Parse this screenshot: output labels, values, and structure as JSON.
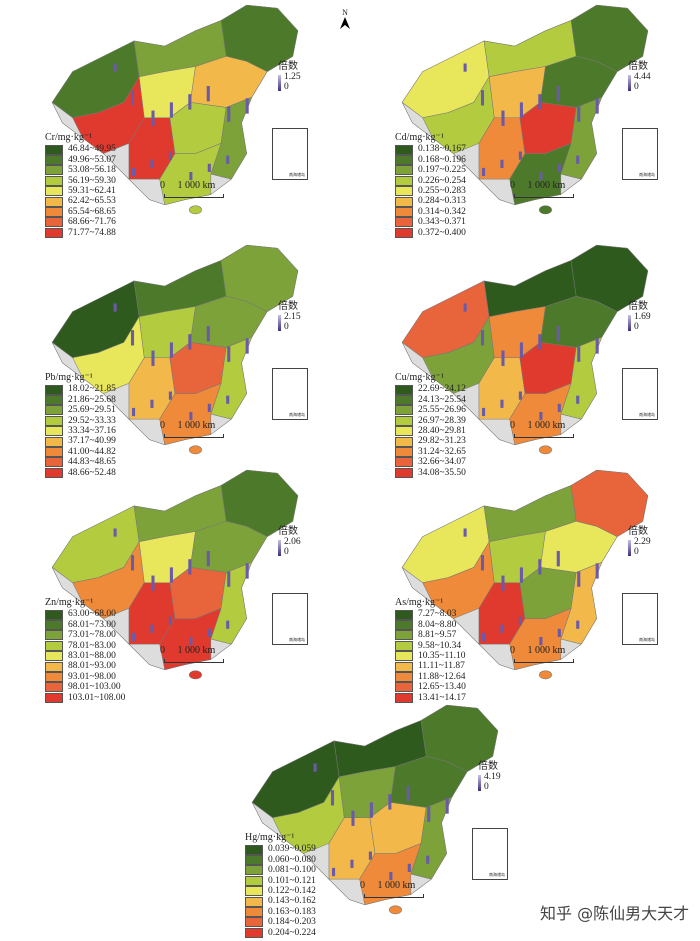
{
  "north_label": "N",
  "watermark": "知乎 @陈仙男大天才",
  "scale_zero": "0",
  "scale_label": "1 000 km",
  "inset_label": "南海诸岛",
  "bar_title": "倍数",
  "maps": [
    {
      "title": "Cr/mg·kg⁻¹",
      "bar_max": "1.25",
      "bar_min": "0",
      "classes": [
        "46.84~49.95",
        "49.96~53.07",
        "53.08~56.18",
        "56.19~59.30",
        "59.31~62.41",
        "62.42~65.53",
        "65.54~68.65",
        "68.66~71.76",
        "71.77~74.88"
      ]
    },
    {
      "title": "Cd/mg·kg⁻¹",
      "bar_max": "4.44",
      "bar_min": "0",
      "classes": [
        "0.138~0.167",
        "0.168~0.196",
        "0.197~0.225",
        "0.226~0.254",
        "0.255~0.283",
        "0.284~0.313",
        "0.314~0.342",
        "0.343~0.371",
        "0.372~0.400"
      ]
    },
    {
      "title": "Pb/mg·kg⁻¹",
      "bar_max": "2.15",
      "bar_min": "0",
      "classes": [
        "18.02~21.85",
        "21.86~25.68",
        "25.69~29.51",
        "29.52~33.33",
        "33.34~37.16",
        "37.17~40.99",
        "41.00~44.82",
        "44.83~48.65",
        "48.66~52.48"
      ]
    },
    {
      "title": "Cu/mg·kg⁻¹",
      "bar_max": "1.69",
      "bar_min": "0",
      "classes": [
        "22.69~24.12",
        "24.13~25.54",
        "25.55~26.96",
        "26.97~28.39",
        "28.40~29.81",
        "29.82~31.23",
        "31.24~32.65",
        "32.66~34.07",
        "34.08~35.50"
      ]
    },
    {
      "title": "Zn/mg·kg⁻¹",
      "bar_max": "2.06",
      "bar_min": "0",
      "classes": [
        "63.00~68.00",
        "68.01~73.00",
        "73.01~78.00",
        "78.01~83.00",
        "83.01~88.00",
        "88.01~93.00",
        "93.01~98.00",
        "98.01~103.00",
        "103.01~108.00"
      ]
    },
    {
      "title": "As/mg·kg⁻¹",
      "bar_max": "2.29",
      "bar_min": "0",
      "classes": [
        "7.27~8.03",
        "8.04~8.80",
        "8.81~9.57",
        "9.58~10.34",
        "10.35~11.10",
        "11.11~11.87",
        "11.88~12.64",
        "12.65~13.40",
        "13.41~14.17"
      ]
    },
    {
      "title": "Hg/mg·kg⁻¹",
      "bar_max": "4.19",
      "bar_min": "0",
      "classes": [
        "0.039~0.059",
        "0.060~0.080",
        "0.081~0.100",
        "0.101~0.121",
        "0.122~0.142",
        "0.143~0.162",
        "0.163~0.183",
        "0.184~0.203",
        "0.204~0.224"
      ]
    }
  ],
  "class_colors": [
    "#2f5a1e",
    "#4d7a2a",
    "#7da23a",
    "#b3cc3f",
    "#e8e65a",
    "#f2b84a",
    "#ee8a3a",
    "#e8643a",
    "#e03a2e"
  ]
}
